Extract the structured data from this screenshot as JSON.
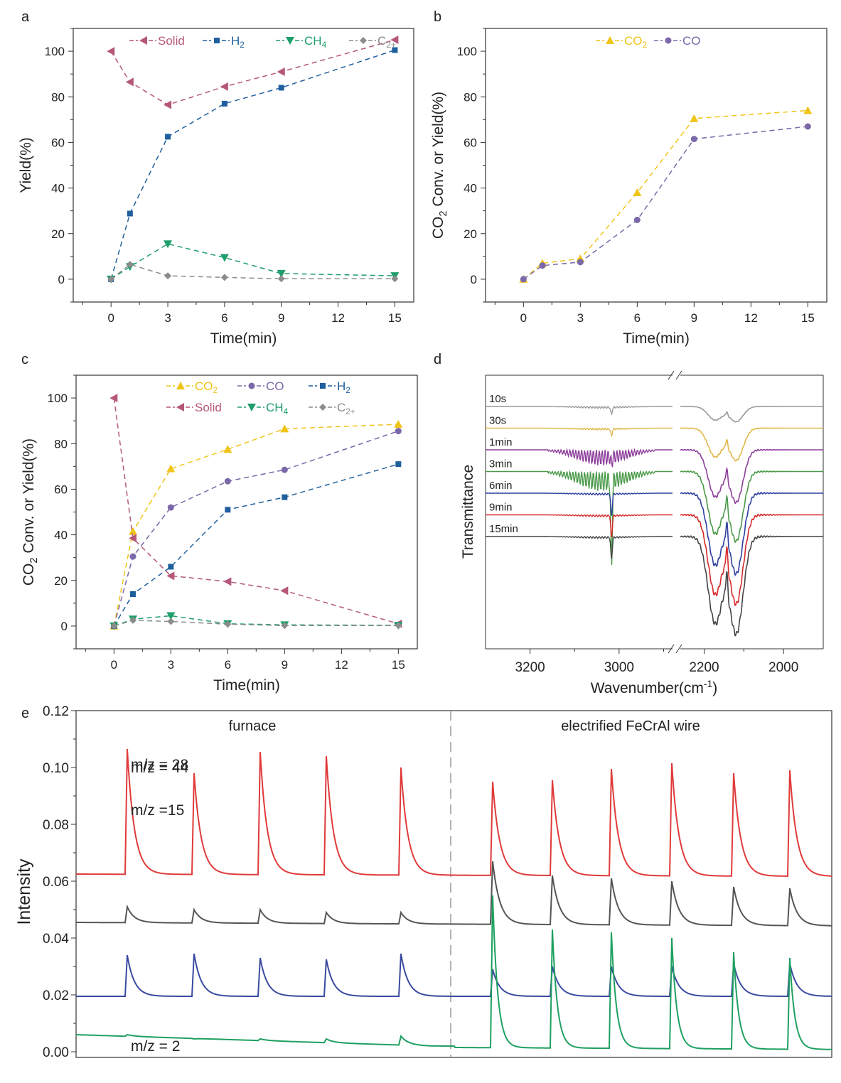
{
  "colors": {
    "solid": "#b5577a",
    "h2": "#1f5f9e",
    "ch4": "#1e9e6a",
    "c2": "#8c8c8c",
    "co2": "#f0c419",
    "co": "#7b68a8",
    "ir_10s": "#999999",
    "ir_30s": "#e0b84a",
    "ir_1min": "#8e3f9c",
    "ir_3min": "#4a9a4a",
    "ir_6min": "#2f3fa0",
    "ir_9min": "#d62a2a",
    "ir_15min": "#444444",
    "ms44": "#e03a3a",
    "ms28": "#555555",
    "ms15": "#3a4aa0",
    "ms2": "#1ea060"
  },
  "chart_data": [
    {
      "panel": "a",
      "type": "line",
      "xlabel": "Time(min)",
      "ylabel": "Yield(%)",
      "xlim": [
        -2,
        16
      ],
      "ylim": [
        -10,
        110
      ],
      "xticks": [
        0,
        3,
        6,
        9,
        12,
        15
      ],
      "yticks": [
        0,
        20,
        40,
        60,
        80,
        100
      ],
      "legend": "top",
      "series": [
        {
          "name": "Solid",
          "label": "Solid",
          "sub": "",
          "color": "solid",
          "marker": "tri-left",
          "x": [
            0,
            1,
            3,
            6,
            9,
            15
          ],
          "values": [
            100,
            86.5,
            76.5,
            84.5,
            91,
            105
          ]
        },
        {
          "name": "H2",
          "label": "H",
          "sub": "2",
          "color": "h2",
          "marker": "square",
          "x": [
            0,
            1,
            3,
            6,
            9,
            15
          ],
          "values": [
            0,
            28.8,
            62.5,
            77,
            84,
            100.5
          ]
        },
        {
          "name": "CH4",
          "label": "CH",
          "sub": "4",
          "color": "ch4",
          "marker": "tri-down",
          "x": [
            0,
            1,
            3,
            6,
            9,
            15
          ],
          "values": [
            0,
            5.5,
            15.5,
            9.5,
            2.5,
            1.5
          ]
        },
        {
          "name": "C2+",
          "label": "C",
          "sub": "2+",
          "color": "c2",
          "marker": "diamond",
          "x": [
            0,
            1,
            3,
            6,
            9,
            15
          ],
          "values": [
            0,
            6.5,
            1.5,
            0.8,
            0.2,
            0.2
          ]
        }
      ]
    },
    {
      "panel": "b",
      "type": "line",
      "xlabel": "Time(min)",
      "ylabel": "CO2 Conv. or Yield(%)",
      "xlim": [
        -2,
        16
      ],
      "ylim": [
        -10,
        110
      ],
      "xticks": [
        0,
        3,
        6,
        9,
        12,
        15
      ],
      "yticks": [
        0,
        20,
        40,
        60,
        80,
        100
      ],
      "legend": "top",
      "series": [
        {
          "name": "CO2",
          "label": "CO",
          "sub": "2",
          "color": "co2",
          "marker": "tri-up",
          "x": [
            0,
            1,
            3,
            6,
            9,
            15
          ],
          "values": [
            0,
            7,
            9,
            38,
            70.5,
            74
          ]
        },
        {
          "name": "CO",
          "label": "CO",
          "sub": "",
          "color": "co",
          "marker": "circle",
          "x": [
            0,
            1,
            3,
            6,
            9,
            15
          ],
          "values": [
            0,
            6,
            7.5,
            26,
            61.5,
            67
          ]
        }
      ]
    },
    {
      "panel": "c",
      "type": "line",
      "xlabel": "Time(min)",
      "ylabel": "CO2 Conv. or Yield(%)",
      "xlim": [
        -2,
        16
      ],
      "ylim": [
        -10,
        110
      ],
      "xticks": [
        0,
        3,
        6,
        9,
        12,
        15
      ],
      "yticks": [
        0,
        20,
        40,
        60,
        80,
        100
      ],
      "legend": "top",
      "series": [
        {
          "name": "CO2",
          "label": "CO",
          "sub": "2",
          "color": "co2",
          "marker": "tri-up",
          "x": [
            0,
            1,
            3,
            6,
            9,
            15
          ],
          "values": [
            0,
            41.5,
            69,
            77.5,
            86.5,
            88.5
          ]
        },
        {
          "name": "CO",
          "label": "CO",
          "sub": "",
          "color": "co",
          "marker": "circle",
          "x": [
            0,
            1,
            3,
            6,
            9,
            15
          ],
          "values": [
            0,
            30.5,
            52,
            63.5,
            68.5,
            85.5
          ]
        },
        {
          "name": "H2",
          "label": "H",
          "sub": "2",
          "color": "h2",
          "marker": "square",
          "x": [
            0,
            1,
            3,
            6,
            9,
            15
          ],
          "values": [
            0,
            14,
            26,
            51,
            56.5,
            71
          ]
        },
        {
          "name": "Solid",
          "label": "Solid",
          "sub": "",
          "color": "solid",
          "marker": "tri-left",
          "x": [
            0,
            1,
            3,
            6,
            9,
            15
          ],
          "values": [
            100,
            38.5,
            22,
            19.5,
            15.5,
            1
          ]
        },
        {
          "name": "CH4",
          "label": "CH",
          "sub": "4",
          "color": "ch4",
          "marker": "tri-down",
          "x": [
            0,
            1,
            3,
            6,
            9,
            15
          ],
          "values": [
            0,
            3,
            4.5,
            1,
            0.5,
            0.3
          ]
        },
        {
          "name": "C2+",
          "label": "C",
          "sub": "2+",
          "color": "c2",
          "marker": "diamond",
          "x": [
            0,
            1,
            3,
            6,
            9,
            15
          ],
          "values": [
            0,
            2.5,
            2,
            0.8,
            0.2,
            0.2
          ]
        }
      ]
    },
    {
      "panel": "d",
      "type": "line",
      "xlabel": "Wavenumber(cm",
      "xlabel_sup": "-1",
      "xlabel_end": ")",
      "ylabel": "Transmittance",
      "x_segments": [
        [
          3300,
          2880
        ],
        [
          2260,
          1900
        ]
      ],
      "xticks": [
        3200,
        3000,
        2200,
        2000
      ],
      "series": [
        {
          "name": "10s",
          "color": "ir_10s",
          "offset": 0,
          "scale": 0.18
        },
        {
          "name": "30s",
          "color": "ir_30s",
          "offset": 1,
          "scale": 0.38
        },
        {
          "name": "1min",
          "color": "ir_1min",
          "offset": 2,
          "scale": 0.62
        },
        {
          "name": "3min",
          "color": "ir_3min",
          "offset": 3,
          "scale": 0.82
        },
        {
          "name": "6min",
          "color": "ir_6min",
          "offset": 4,
          "scale": 0.95
        },
        {
          "name": "9min",
          "color": "ir_9min",
          "offset": 5,
          "scale": 1.05
        },
        {
          "name": "15min",
          "color": "ir_15min",
          "offset": 6,
          "scale": 1.15
        }
      ]
    },
    {
      "panel": "e",
      "type": "line",
      "ylabel": "Intensity",
      "ylim": [
        -0.002,
        0.12
      ],
      "yticks": [
        "0.00",
        "0.02",
        "0.04",
        "0.06",
        "0.08",
        "0.10",
        "0.12"
      ],
      "ytick_values": [
        0,
        0.02,
        0.04,
        0.06,
        0.08,
        0.1,
        0.12
      ],
      "regions": [
        "furnace",
        "electrified FeCrAl wire"
      ],
      "series": [
        {
          "name": "m/z = 44",
          "color": "ms44",
          "baseline": 0.0625,
          "peaks_furnace": [
            0.1065,
            0.098,
            0.1055,
            0.104,
            0.1
          ],
          "peaks_wire": [
            0.095,
            0.0955,
            0.0995,
            0.1015,
            0.098,
            0.099
          ]
        },
        {
          "name": "m/z = 28",
          "color": "ms28",
          "baseline": 0.0455,
          "peaks_furnace": [
            0.051,
            0.05,
            0.05,
            0.049,
            0.049
          ],
          "peaks_wire": [
            0.067,
            0.062,
            0.061,
            0.06,
            0.058,
            0.0575
          ]
        },
        {
          "name": "m/z =15",
          "color": "ms15",
          "baseline": 0.0195,
          "peaks_furnace": [
            0.034,
            0.0345,
            0.033,
            0.0325,
            0.0345
          ],
          "peaks_wire": [
            0.029,
            0.03,
            0.03,
            0.03,
            0.031,
            0.031
          ]
        },
        {
          "name": "m/z = 2",
          "color": "ms2",
          "baseline": 0.002,
          "peaks_furnace": [
            0.006,
            0.0045,
            0.0045,
            0.0045,
            0.0055
          ],
          "peaks_wire": [
            0.055,
            0.043,
            0.042,
            0.04,
            0.035,
            0.033
          ]
        }
      ]
    }
  ],
  "panel_labels": [
    "a",
    "b",
    "c",
    "d",
    "e"
  ]
}
